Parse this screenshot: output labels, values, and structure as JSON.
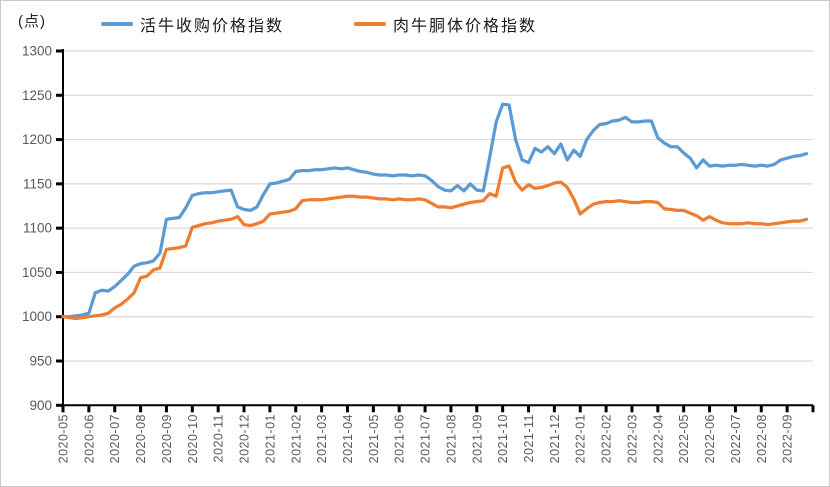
{
  "chart_data": {
    "type": "line",
    "title": "",
    "unit_label": "(点)",
    "xlabel": "",
    "ylabel": "点",
    "ylim": [
      900,
      1300
    ],
    "ytick_step": 50,
    "grid": true,
    "legend_position": "top",
    "categories": [
      "2020-05",
      "2020-06",
      "2020-07",
      "2020-08",
      "2020-09",
      "2020-10",
      "2020-11",
      "2020-12",
      "2021-01",
      "2021-02",
      "2021-03",
      "2021-04",
      "2021-05",
      "2021-06",
      "2021-07",
      "2021-08",
      "2021-09",
      "2021-10",
      "2021-11",
      "2021-12",
      "2022-01",
      "2022-02",
      "2022-03",
      "2022-04",
      "2022-05",
      "2022-06",
      "2022-07",
      "2022-08",
      "2022-09"
    ],
    "points_per_month": 4,
    "series": [
      {
        "name": "活牛收购价格指数",
        "color": "#5B9BD5",
        "values": [
          1000,
          1000,
          1001,
          1002,
          1004,
          1027,
          1030,
          1029,
          1034,
          1041,
          1048,
          1057,
          1060,
          1061,
          1063,
          1072,
          1110,
          1111,
          1112,
          1123,
          1137,
          1139,
          1140,
          1140,
          1141,
          1142,
          1143,
          1124,
          1121,
          1120,
          1124,
          1138,
          1150,
          1151,
          1153,
          1155,
          1164,
          1165,
          1165,
          1166,
          1166,
          1167,
          1168,
          1167,
          1168,
          1166,
          1164,
          1163,
          1161,
          1160,
          1160,
          1159,
          1160,
          1160,
          1159,
          1160,
          1159,
          1154,
          1147,
          1143,
          1142,
          1148,
          1142,
          1150,
          1143,
          1142,
          1180,
          1220,
          1240,
          1239,
          1200,
          1177,
          1174,
          1190,
          1186,
          1192,
          1184,
          1195,
          1177,
          1188,
          1181,
          1200,
          1210,
          1217,
          1218,
          1221,
          1222,
          1225,
          1220,
          1220,
          1221,
          1221,
          1202,
          1196,
          1192,
          1192,
          1185,
          1179,
          1168,
          1177,
          1170,
          1171,
          1170,
          1171,
          1171,
          1172,
          1171,
          1170,
          1171,
          1170,
          1172,
          1177,
          1179,
          1181,
          1182,
          1184
        ]
      },
      {
        "name": "肉牛胴体价格指数",
        "color": "#ED7D31",
        "values": [
          1000,
          999,
          998,
          999,
          1000,
          1001,
          1002,
          1004,
          1010,
          1014,
          1020,
          1027,
          1044,
          1046,
          1053,
          1055,
          1076,
          1077,
          1078,
          1080,
          1101,
          1103,
          1105,
          1106,
          1108,
          1109,
          1110,
          1113,
          1104,
          1103,
          1105,
          1108,
          1116,
          1117,
          1118,
          1119,
          1122,
          1131,
          1132,
          1132,
          1132,
          1133,
          1134,
          1135,
          1136,
          1136,
          1135,
          1135,
          1134,
          1133,
          1133,
          1132,
          1133,
          1132,
          1132,
          1133,
          1132,
          1128,
          1124,
          1124,
          1123,
          1125,
          1127,
          1129,
          1130,
          1131,
          1139,
          1136,
          1168,
          1170,
          1152,
          1143,
          1149,
          1145,
          1146,
          1148,
          1151,
          1152,
          1146,
          1133,
          1116,
          1122,
          1127,
          1129,
          1130,
          1130,
          1131,
          1130,
          1129,
          1129,
          1130,
          1130,
          1129,
          1122,
          1121,
          1120,
          1120,
          1117,
          1114,
          1109,
          1113,
          1109,
          1106,
          1105,
          1105,
          1105,
          1106,
          1105,
          1105,
          1104,
          1105,
          1106,
          1107,
          1108,
          1108,
          1110
        ]
      }
    ],
    "colors": {
      "axis": "#000000",
      "gridline": "#D9D9D9",
      "tick_label": "#595959",
      "legend_text": "#1a1a1a",
      "background": "#FFFFFF"
    }
  }
}
